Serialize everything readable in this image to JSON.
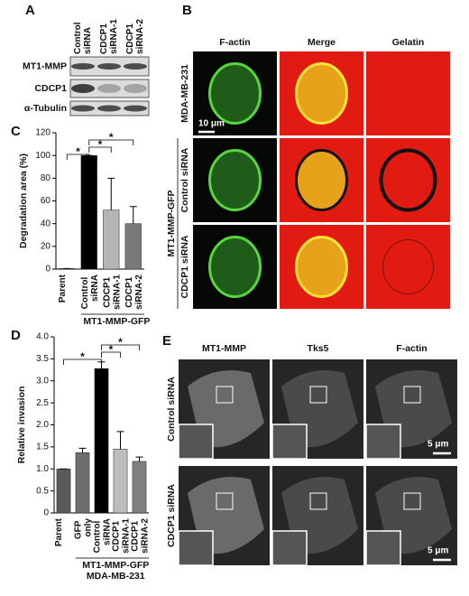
{
  "panels": {
    "A": {
      "label": "A",
      "columns": [
        "Control siRNA",
        "CDCP1 siRNA-1",
        "CDCP1 siRNA-2"
      ],
      "rows": [
        "MT1-MMP",
        "CDCP1",
        "α-Tubulin"
      ]
    },
    "B": {
      "label": "B",
      "columns": [
        "F-actin",
        "Merge",
        "Gelatin"
      ],
      "rows": [
        "MDA-MB-231",
        "Control siRNA",
        "CDCP1 siRNA"
      ],
      "group_label": "MT1-MMP-GFP",
      "scale_bar": "10 μm"
    },
    "E": {
      "label": "E",
      "columns": [
        "MT1-MMP",
        "Tks5",
        "F-actin"
      ],
      "rows": [
        "Control siRNA",
        "CDCP1 siRNA"
      ],
      "scale_bars": [
        "5 μm",
        "5 μm"
      ]
    }
  },
  "chart_data": [
    {
      "type": "bar",
      "panel_label": "C",
      "ylabel": "Degradation area (%)",
      "categories": [
        "Parent",
        "Control siRNA",
        "CDCP1 siRNA-1",
        "CDCP1 siRNA-2"
      ],
      "values": [
        0.5,
        100,
        52,
        40
      ],
      "errors": [
        0,
        0,
        28,
        15
      ],
      "colors": [
        "#555555",
        "#000000",
        "#b5b5b5",
        "#7a7a7a"
      ],
      "ylim": [
        0,
        120
      ],
      "yticks": [
        0,
        20,
        40,
        60,
        80,
        100,
        120
      ],
      "group_labels": [
        "MT1-MMP-GFP"
      ],
      "significance": [
        "*",
        "*",
        "*"
      ]
    },
    {
      "type": "bar",
      "panel_label": "D",
      "ylabel": "Relative invasion",
      "categories": [
        "Parent",
        "GFP only",
        "Control siRNA",
        "CDCP1 siRNA-1",
        "CDCP1 siRNA-2"
      ],
      "values": [
        1.0,
        1.37,
        3.28,
        1.45,
        1.17
      ],
      "errors": [
        0,
        0.1,
        0.15,
        0.4,
        0.1
      ],
      "colors": [
        "#5a5a5a",
        "#6e6e6e",
        "#000000",
        "#bdbdbd",
        "#7f7f7f"
      ],
      "ylim": [
        0,
        4.0
      ],
      "yticks": [
        0,
        0.5,
        {
          "value": 1,
          "label": "1.0"
        },
        1.5,
        {
          "value": 2,
          "label": "2.0"
        },
        2.5,
        {
          "value": 3,
          "label": "3.0"
        },
        3.5,
        {
          "value": 4,
          "label": "4.0"
        }
      ],
      "group_labels": [
        "MT1-MMP-GFP",
        "MDA-MB-231"
      ],
      "significance": [
        "*",
        "*",
        "*"
      ]
    }
  ]
}
